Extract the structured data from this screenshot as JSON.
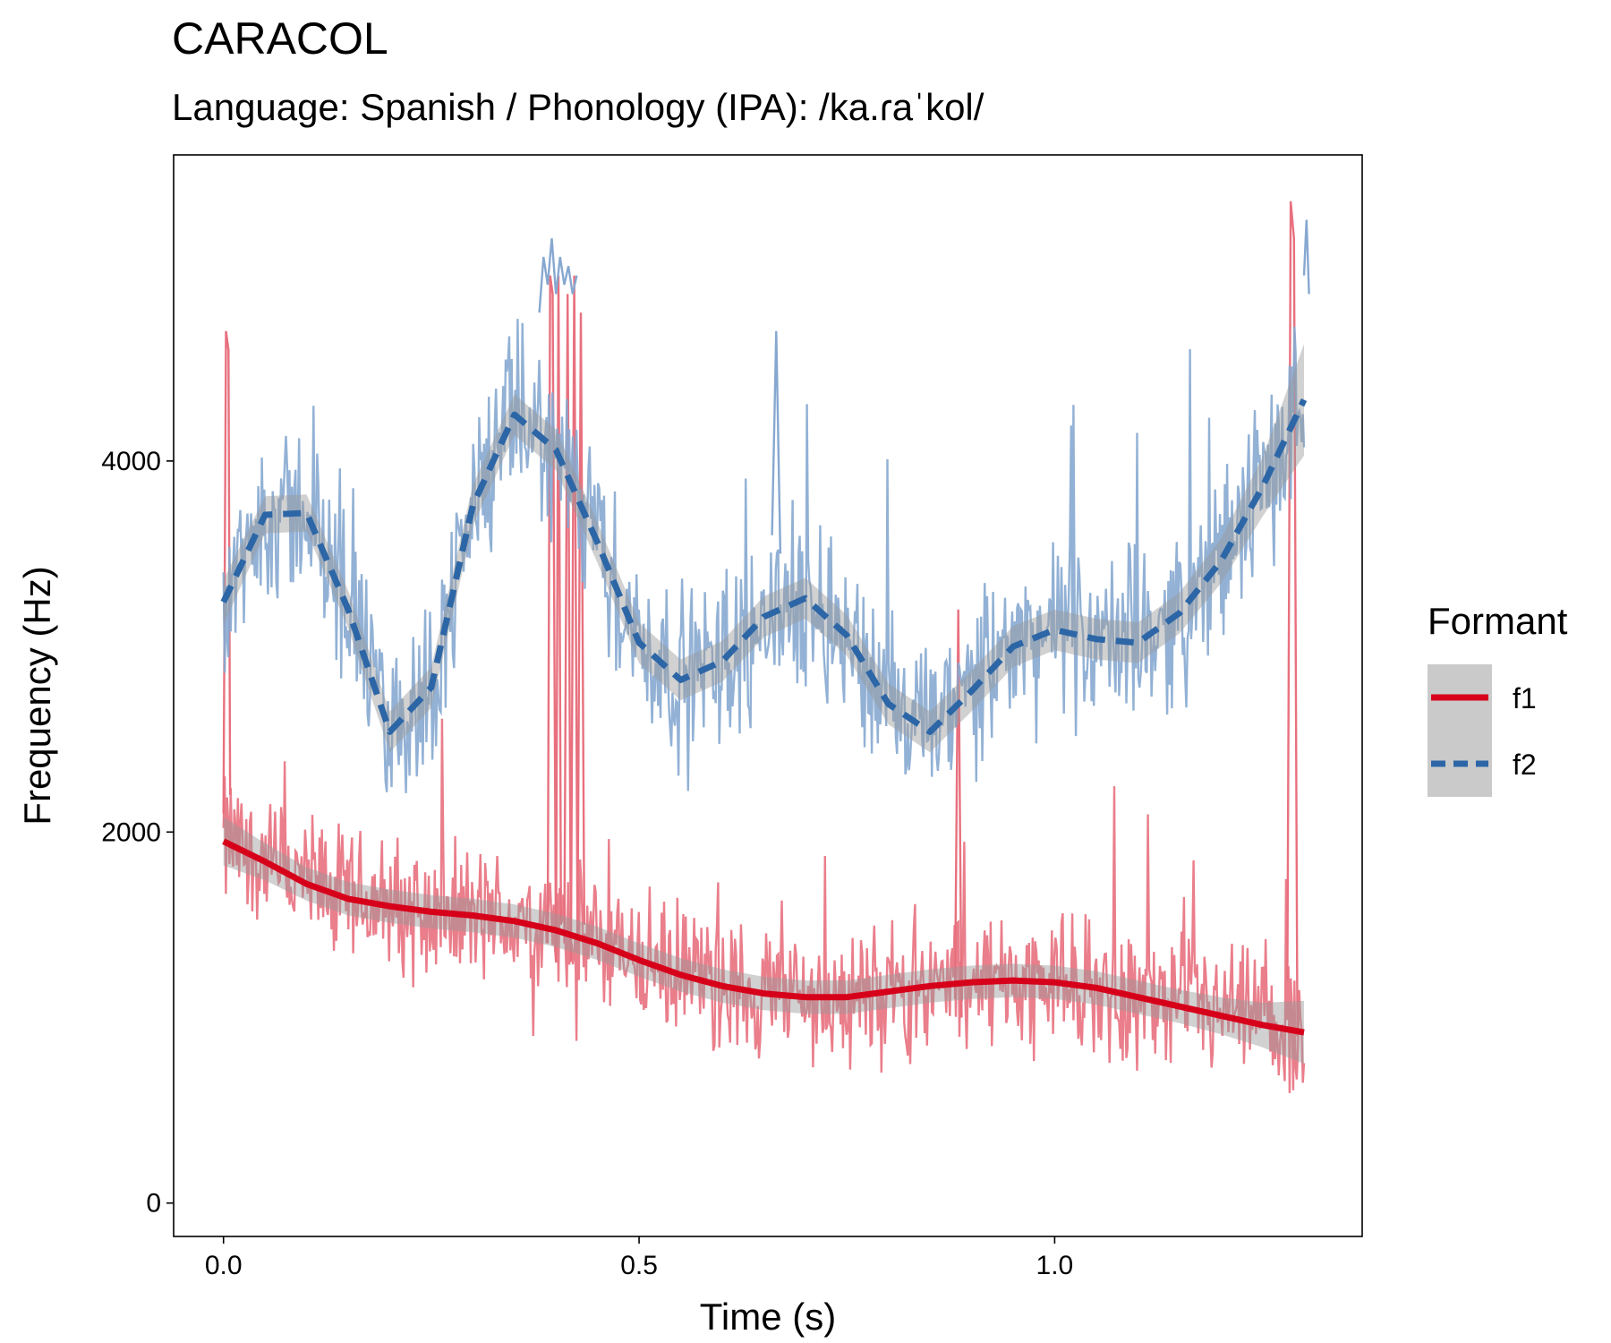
{
  "chart_data": {
    "type": "line",
    "title": "CARACOL",
    "subtitle": "Language: Spanish / Phonology (IPA): /ka.ɾaˈkol/",
    "xlabel": "Time (s)",
    "ylabel": "Frequency (Hz)",
    "xlim": [
      -0.06,
      1.37
    ],
    "ylim": [
      -180,
      5650
    ],
    "x_ticks": [
      0.0,
      0.5,
      1.0
    ],
    "x_tick_labels": [
      "0.0",
      "0.5",
      "1.0"
    ],
    "y_ticks": [
      0,
      2000,
      4000
    ],
    "y_tick_labels": [
      "0",
      "2000",
      "4000"
    ],
    "grid": false,
    "legend": {
      "title": "Formant",
      "position": "right",
      "entries": [
        {
          "label": "f1",
          "color": "#d7001a",
          "linetype": "solid"
        },
        {
          "label": "f2",
          "color": "#2c66a6",
          "linetype": "dashed"
        }
      ]
    },
    "series": [
      {
        "name": "f1",
        "color": "#d7001a",
        "raw_color": "#e8707e",
        "smooth": {
          "x": [
            0.0,
            0.05,
            0.1,
            0.15,
            0.2,
            0.25,
            0.3,
            0.35,
            0.4,
            0.45,
            0.5,
            0.55,
            0.6,
            0.65,
            0.7,
            0.75,
            0.8,
            0.85,
            0.9,
            0.95,
            1.0,
            1.05,
            1.1,
            1.15,
            1.2,
            1.25,
            1.3
          ],
          "y": [
            1950,
            1840,
            1720,
            1640,
            1600,
            1570,
            1550,
            1520,
            1470,
            1400,
            1310,
            1230,
            1170,
            1130,
            1110,
            1110,
            1140,
            1170,
            1190,
            1200,
            1190,
            1160,
            1110,
            1060,
            1010,
            960,
            920
          ],
          "ci": [
            130,
            100,
            90,
            90,
            90,
            90,
            90,
            90,
            90,
            90,
            90,
            90,
            90,
            90,
            90,
            90,
            90,
            90,
            90,
            90,
            90,
            90,
            90,
            90,
            100,
            120,
            170
          ]
        },
        "raw_traces": [
          {
            "x": [
              0.0,
              0.003,
              0.006,
              0.008
            ],
            "y": [
              2100,
              4700,
              4600,
              2200
            ]
          },
          {
            "x": [
              0.39,
              0.393,
              0.396,
              0.4,
              0.403,
              0.406
            ],
            "y": [
              1400,
              5000,
              4900,
              1300,
              5000,
              1500
            ]
          },
          {
            "x": [
              0.41,
              0.414,
              0.418,
              0.422,
              0.426,
              0.43,
              0.434
            ],
            "y": [
              1400,
              4900,
              1300,
              5000,
              1400,
              4800,
              1500
            ]
          },
          {
            "x": [
              0.88,
              0.884,
              0.888
            ],
            "y": [
              1100,
              3200,
              1000
            ]
          },
          {
            "x": [
              1.28,
              1.284,
              1.288,
              1.292
            ],
            "y": [
              1200,
              5400,
              5200,
              900
            ]
          }
        ]
      },
      {
        "name": "f2",
        "color": "#2c66a6",
        "raw_color": "#86a8d0",
        "smooth": {
          "x": [
            0.0,
            0.05,
            0.1,
            0.15,
            0.2,
            0.25,
            0.3,
            0.35,
            0.4,
            0.45,
            0.5,
            0.55,
            0.6,
            0.65,
            0.7,
            0.75,
            0.8,
            0.85,
            0.9,
            0.95,
            1.0,
            1.05,
            1.1,
            1.15,
            1.2,
            1.25,
            1.3
          ],
          "y": [
            3240,
            3710,
            3720,
            3200,
            2540,
            2780,
            3760,
            4250,
            4060,
            3560,
            3020,
            2820,
            2920,
            3160,
            3260,
            3060,
            2690,
            2540,
            2760,
            3000,
            3090,
            3040,
            3020,
            3180,
            3460,
            3860,
            4330
          ],
          "ci": [
            120,
            100,
            100,
            100,
            110,
            110,
            110,
            110,
            110,
            110,
            110,
            110,
            110,
            110,
            110,
            110,
            110,
            110,
            110,
            110,
            110,
            110,
            110,
            110,
            120,
            160,
            300
          ]
        },
        "raw_traces": [
          {
            "x": [
              0.38,
              0.385,
              0.39,
              0.395,
              0.4,
              0.405,
              0.41,
              0.415,
              0.42,
              0.425
            ],
            "y": [
              4800,
              5100,
              4950,
              5200,
              4900,
              5100,
              4950,
              5050,
              4900,
              5000
            ]
          },
          {
            "x": [
              0.66,
              0.665,
              0.67
            ],
            "y": [
              3600,
              4700,
              3500
            ]
          },
          {
            "x": [
              1.3,
              1.303,
              1.306
            ],
            "y": [
              5000,
              5300,
              4900
            ]
          }
        ]
      }
    ]
  }
}
